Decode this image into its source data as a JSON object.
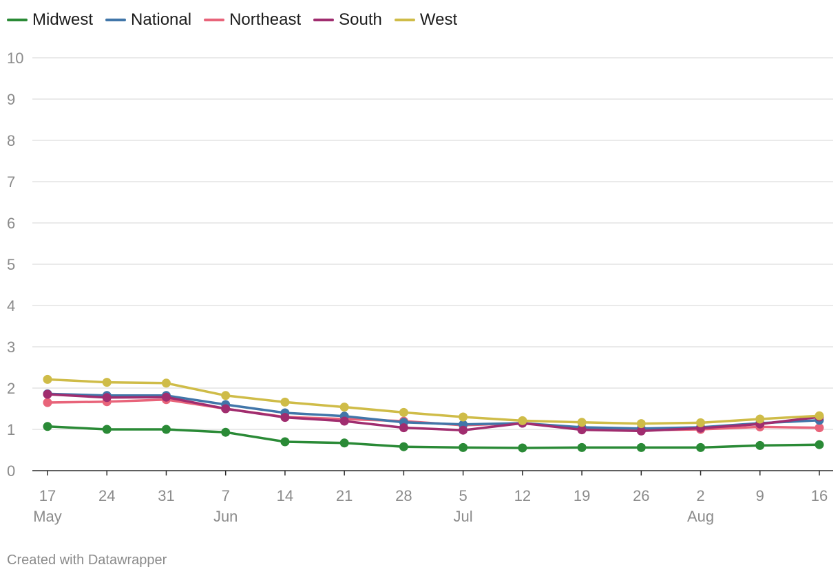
{
  "footer": {
    "credit": "Created with Datawrapper"
  },
  "chart_data": {
    "type": "line",
    "title": "",
    "xlabel": "",
    "ylabel": "",
    "ylim": [
      0,
      10
    ],
    "yticks": [
      0,
      1,
      2,
      3,
      4,
      5,
      6,
      7,
      8,
      9,
      10
    ],
    "grid": true,
    "legend_placement": "top-left",
    "x": [
      "2020-05-17",
      "2020-05-24",
      "2020-05-31",
      "2020-06-07",
      "2020-06-14",
      "2020-06-21",
      "2020-06-28",
      "2020-07-05",
      "2020-07-12",
      "2020-07-19",
      "2020-07-26",
      "2020-08-02",
      "2020-08-09",
      "2020-08-16"
    ],
    "x_tick_labels": [
      "17",
      "24",
      "31",
      "7",
      "14",
      "21",
      "28",
      "5",
      "12",
      "19",
      "26",
      "2",
      "9",
      "16"
    ],
    "month_labels": [
      {
        "label": "May",
        "index": 0
      },
      {
        "label": "Jun",
        "index": 3
      },
      {
        "label": "Jul",
        "index": 7
      },
      {
        "label": "Aug",
        "index": 11
      }
    ],
    "series": [
      {
        "name": "Northeast",
        "color": "#e8647a",
        "values": [
          1.65,
          1.67,
          1.72,
          1.5,
          1.3,
          1.25,
          1.2,
          1.1,
          1.15,
          1.02,
          0.98,
          1.0,
          1.06,
          1.04
        ]
      },
      {
        "name": "National",
        "color": "#4176a9",
        "values": [
          1.86,
          1.82,
          1.82,
          1.6,
          1.4,
          1.32,
          1.17,
          1.12,
          1.15,
          1.05,
          1.02,
          1.05,
          1.15,
          1.22
        ]
      },
      {
        "name": "South",
        "color": "#a02d6f",
        "values": [
          1.85,
          1.77,
          1.78,
          1.5,
          1.29,
          1.2,
          1.04,
          0.98,
          1.15,
          0.99,
          0.96,
          1.03,
          1.13,
          1.3
        ]
      },
      {
        "name": "West",
        "color": "#cfbc48",
        "values": [
          2.21,
          2.14,
          2.12,
          1.82,
          1.66,
          1.54,
          1.41,
          1.3,
          1.21,
          1.17,
          1.14,
          1.16,
          1.25,
          1.33
        ]
      },
      {
        "name": "Midwest",
        "color": "#2a8a36",
        "values": [
          1.07,
          1.0,
          1.0,
          0.93,
          0.7,
          0.67,
          0.58,
          0.56,
          0.55,
          0.56,
          0.56,
          0.56,
          0.61,
          0.63
        ]
      }
    ],
    "legend_order": [
      "Midwest",
      "National",
      "Northeast",
      "South",
      "West"
    ]
  }
}
